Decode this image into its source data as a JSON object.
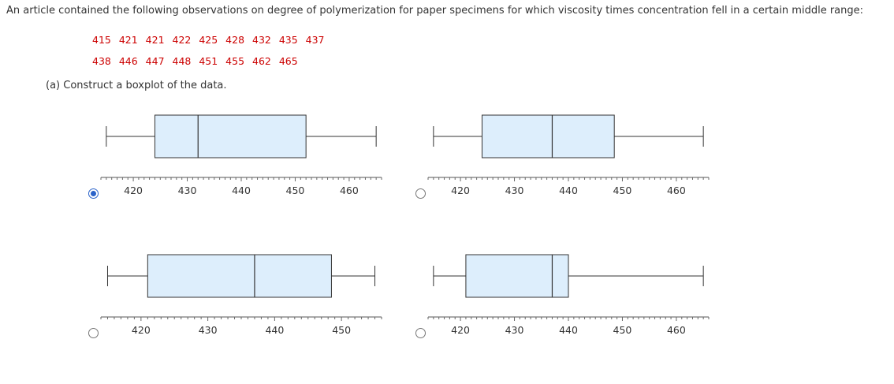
{
  "question": {
    "prompt": "An article contained the following observations on degree of polymerization for paper specimens for which viscosity times concentration fell in a certain middle range:",
    "data_row_1": "415 421 421 422 425 428 432 435 437",
    "data_row_2": "438 446 447 448 451 455 462 465",
    "part_a": "(a) Construct a boxplot of the data."
  },
  "colors": {
    "box_fill": "#ddeefc",
    "stroke": "#333333",
    "radio_selected": "#2a62c9",
    "data_text": "#cc0000"
  },
  "chart_data": [
    {
      "type": "boxplot",
      "option": "A",
      "selected": true,
      "whisker_low": 415,
      "q1": 424,
      "median": 432,
      "q3": 452,
      "whisker_high": 465,
      "ticks": [
        420,
        430,
        440,
        450,
        460
      ],
      "xlim": [
        414,
        466
      ]
    },
    {
      "type": "boxplot",
      "option": "B",
      "selected": false,
      "whisker_low": 415,
      "q1": 424,
      "median": 437,
      "q3": 448.5,
      "whisker_high": 465,
      "ticks": [
        420,
        430,
        440,
        450,
        460
      ],
      "xlim": [
        414,
        466
      ]
    },
    {
      "type": "boxplot",
      "option": "C",
      "selected": false,
      "whisker_low": 415,
      "q1": 421,
      "median": 437,
      "q3": 448.5,
      "whisker_high": 455,
      "ticks": [
        420,
        430,
        440,
        450
      ],
      "xlim": [
        414,
        456
      ]
    },
    {
      "type": "boxplot",
      "option": "D",
      "selected": false,
      "whisker_low": 415,
      "q1": 421,
      "median": 437,
      "q3": 440,
      "whisker_high": 465,
      "ticks": [
        420,
        430,
        440,
        450,
        460
      ],
      "xlim": [
        414,
        466
      ]
    }
  ]
}
